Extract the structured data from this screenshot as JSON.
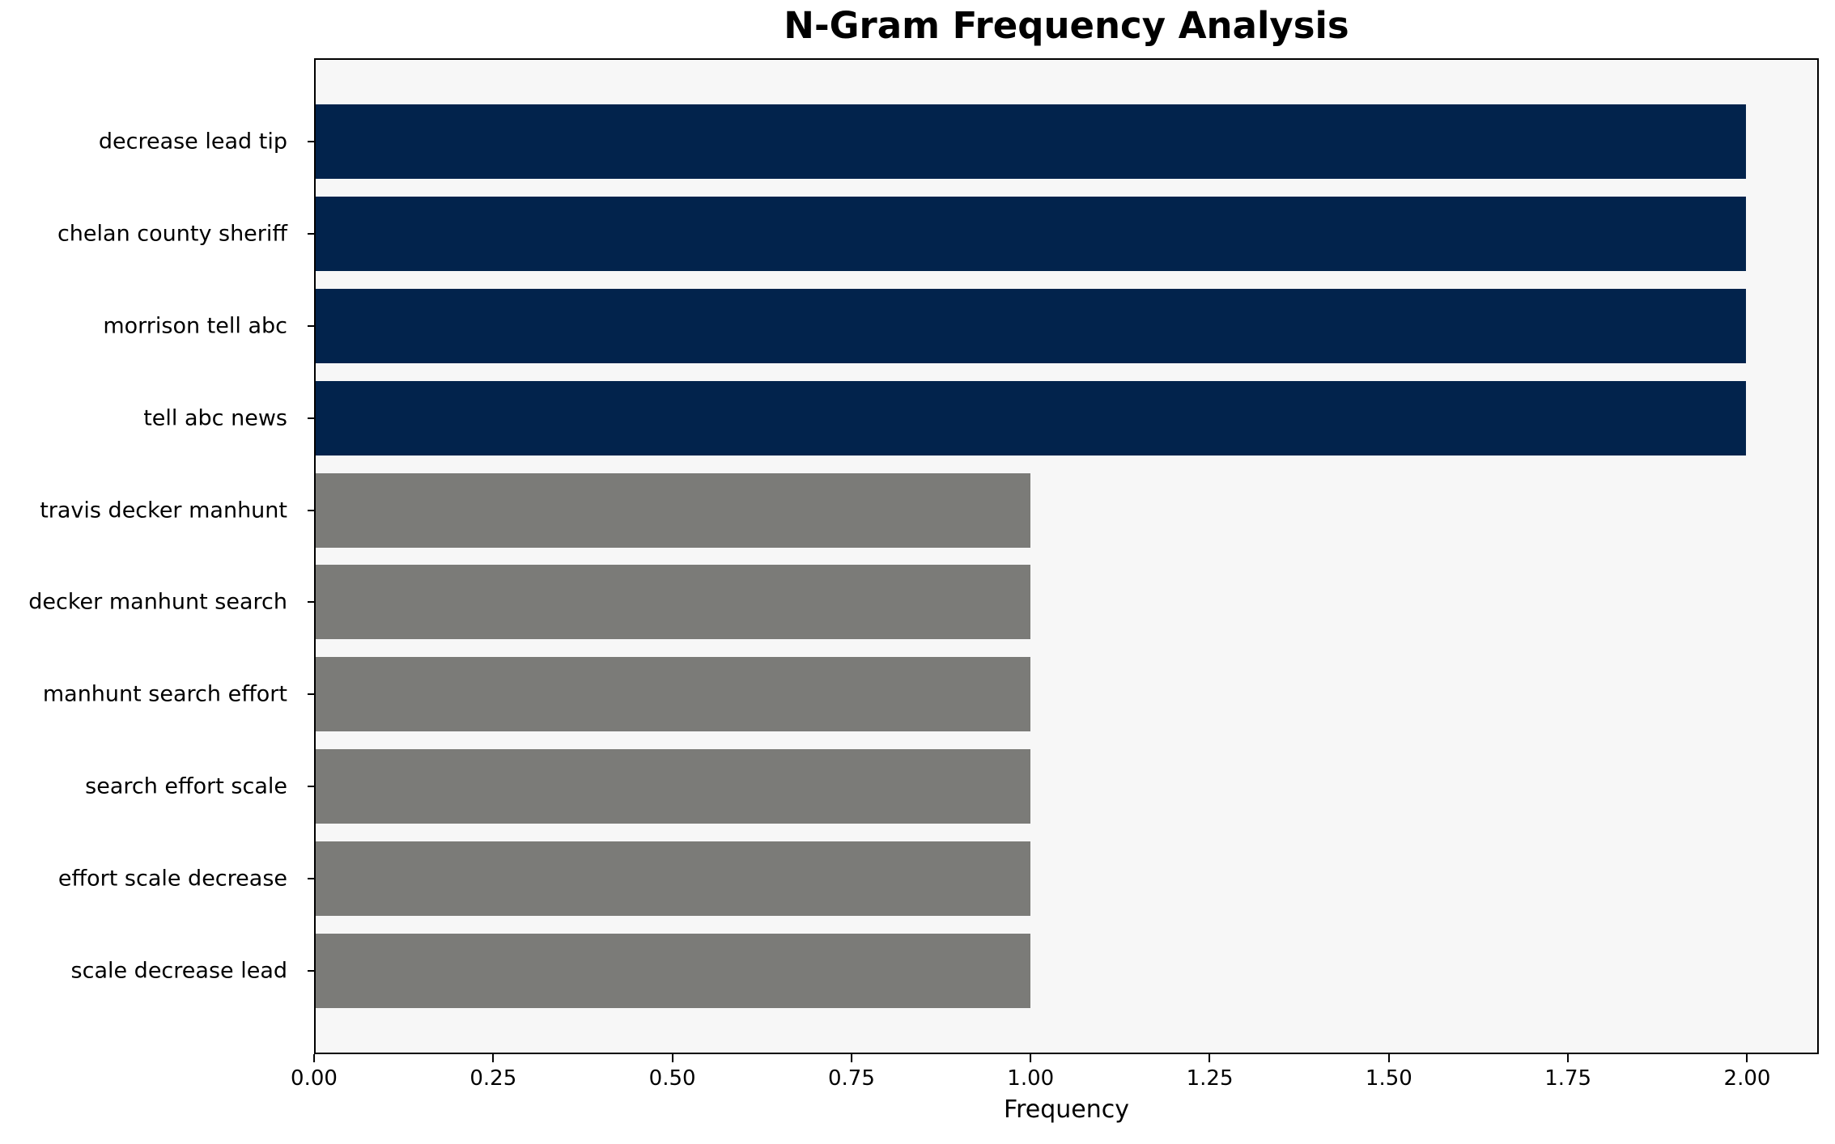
{
  "chart_data": {
    "type": "bar",
    "orientation": "horizontal",
    "title": "N-Gram Frequency Analysis",
    "xlabel": "Frequency",
    "ylabel": "",
    "categories": [
      "decrease lead tip",
      "chelan county sheriff",
      "morrison tell abc",
      "tell abc news",
      "travis decker manhunt",
      "decker manhunt search",
      "manhunt search effort",
      "search effort scale",
      "effort scale decrease",
      "scale decrease lead"
    ],
    "values": [
      2,
      2,
      2,
      2,
      1,
      1,
      1,
      1,
      1,
      1
    ],
    "bar_colors": [
      "#02234C",
      "#02234C",
      "#02234C",
      "#02234C",
      "#7B7B78",
      "#7B7B78",
      "#7B7B78",
      "#7B7B78",
      "#7B7B78",
      "#7B7B78"
    ],
    "xlim": [
      0,
      2.1
    ],
    "x_ticks": [
      "0.00",
      "0.25",
      "0.50",
      "0.75",
      "1.00",
      "1.25",
      "1.50",
      "1.75",
      "2.00"
    ],
    "x_tick_values": [
      0,
      0.25,
      0.5,
      0.75,
      1.0,
      1.25,
      1.5,
      1.75,
      2.0
    ],
    "grid": false,
    "legend_position": "none",
    "colors": {
      "high_frequency_bar": "#02234C",
      "low_frequency_bar": "#7B7B78",
      "plot_background": "#F7F7F7",
      "figure_background": "#FFFFFF",
      "axis": "#000000"
    }
  }
}
